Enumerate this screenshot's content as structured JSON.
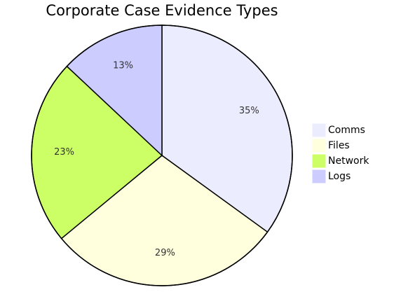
{
  "chart_data": {
    "type": "pie",
    "title": "Corporate Case Evidence Types",
    "categories": [
      "Comms",
      "Files",
      "Network",
      "Logs"
    ],
    "values": [
      35,
      29,
      23,
      13
    ],
    "value_labels": [
      "35%",
      "29%",
      "23%",
      "13%"
    ],
    "colors": [
      "#ececff",
      "#ffffde",
      "#ccff66",
      "#ccccff"
    ]
  }
}
